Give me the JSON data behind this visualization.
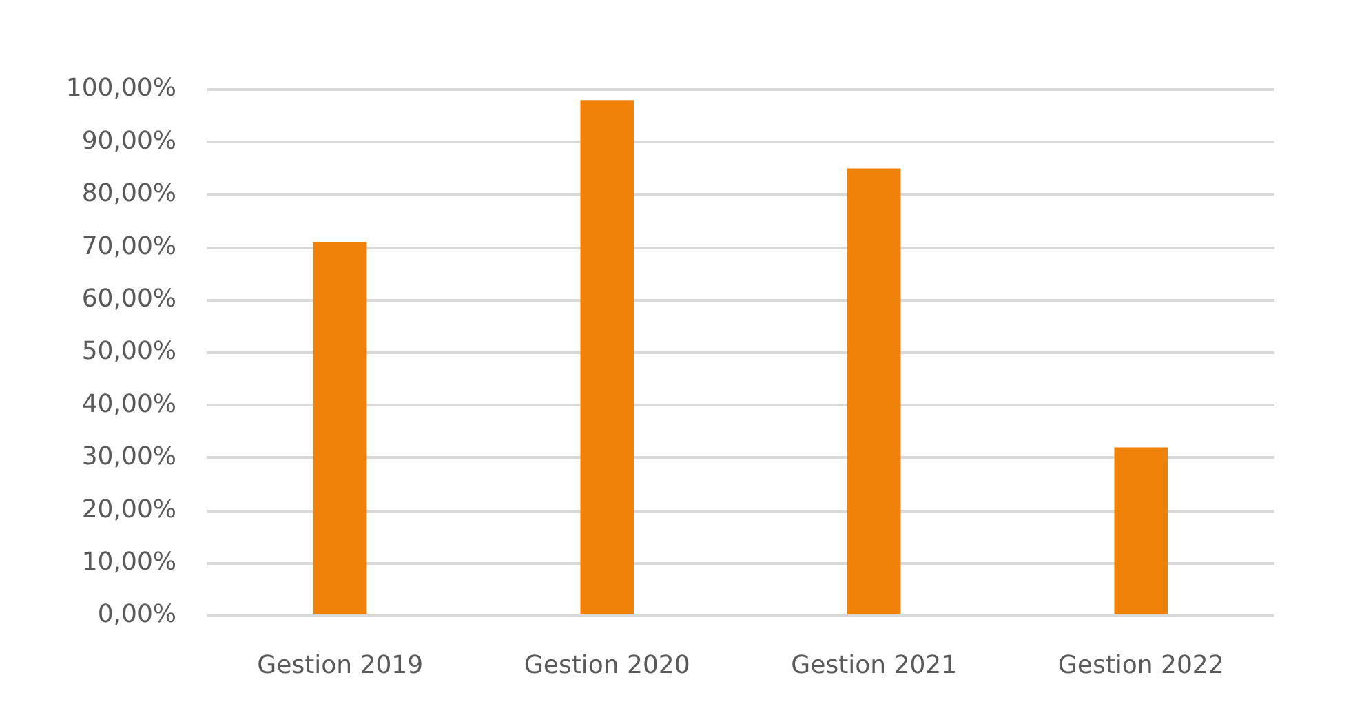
{
  "chart_data": {
    "type": "bar",
    "categories": [
      "Gestion 2019",
      "Gestion 2020",
      "Gestion 2021",
      "Gestion 2022"
    ],
    "values": [
      71,
      98,
      85,
      32
    ],
    "color": "#f0820a",
    "ylim": [
      0,
      100
    ],
    "yticks": [
      {
        "value": 0,
        "label": "0,00%"
      },
      {
        "value": 10,
        "label": "10,00%"
      },
      {
        "value": 20,
        "label": "20,00%"
      },
      {
        "value": 30,
        "label": "30,00%"
      },
      {
        "value": 40,
        "label": "40,00%"
      },
      {
        "value": 50,
        "label": "50,00%"
      },
      {
        "value": 60,
        "label": "60,00%"
      },
      {
        "value": 70,
        "label": "70,00%"
      },
      {
        "value": 80,
        "label": "80,00%"
      },
      {
        "value": 90,
        "label": "90,00%"
      },
      {
        "value": 100,
        "label": "100,00%"
      }
    ],
    "grid": "y",
    "legend": false
  }
}
